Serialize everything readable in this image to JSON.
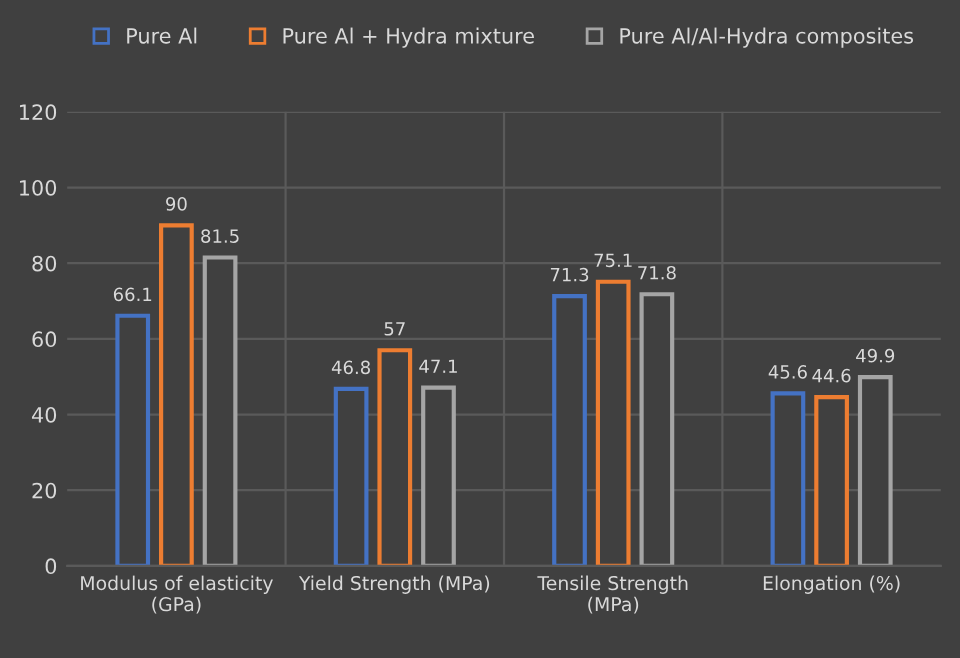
{
  "chart_data": {
    "type": "bar",
    "categories": [
      "Modulus of elasticity\n(GPa)",
      "Yield Strength (MPa)",
      "Tensile Strength\n(MPa)",
      "Elongation (%)"
    ],
    "series": [
      {
        "name": "Pure Al",
        "color": "#4472c4",
        "values": [
          66.1,
          46.8,
          71.3,
          45.6
        ]
      },
      {
        "name": "Pure Al + Hydra mixture",
        "color": "#ed7d31",
        "values": [
          90,
          57,
          75.1,
          44.6
        ]
      },
      {
        "name": "Pure Al/Al-Hydra composites",
        "color": "#a5a5a5",
        "values": [
          81.5,
          47.1,
          71.8,
          49.9
        ]
      }
    ],
    "ylim": [
      0,
      120
    ],
    "yticks": [
      0,
      20,
      40,
      60,
      80,
      100,
      120
    ],
    "grid": true,
    "legend": "top",
    "data_labels": true
  }
}
